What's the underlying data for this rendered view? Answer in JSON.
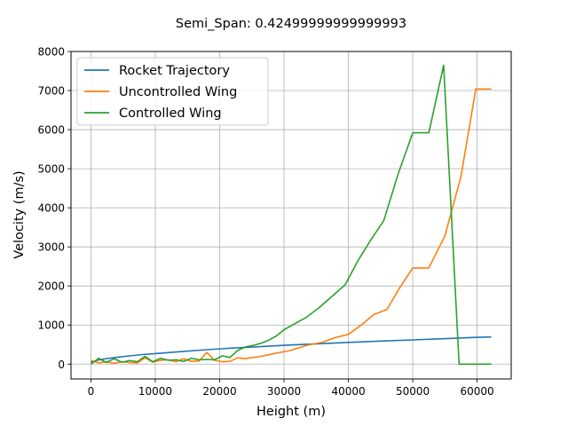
{
  "chart_data": {
    "type": "line",
    "title": "Semi_Span: 0.42499999999999993",
    "xlabel": "Height (m)",
    "ylabel": "Velocity (m/s)",
    "xlim": [
      -3100,
      65300
    ],
    "ylim": [
      -380,
      8000
    ],
    "xticks": [
      0,
      10000,
      20000,
      30000,
      40000,
      50000,
      60000
    ],
    "yticks": [
      0,
      1000,
      2000,
      3000,
      4000,
      5000,
      6000,
      7000,
      8000
    ],
    "grid": true,
    "legend_position": "upper-left",
    "series": [
      {
        "name": "Rocket Trajectory",
        "color": "#1f77b4",
        "x": [
          0,
          1000,
          2000,
          4000,
          6000,
          8000,
          10000,
          14000,
          18000,
          22000,
          26000,
          30000,
          35000,
          40000,
          45000,
          50000,
          55000,
          60000,
          62200
        ],
        "y": [
          40,
          100,
          130,
          175,
          210,
          245,
          270,
          320,
          370,
          410,
          445,
          480,
          520,
          555,
          590,
          620,
          650,
          685,
          695
        ]
      },
      {
        "name": "Uncontrolled Wing",
        "color": "#ff7f0e",
        "x": [
          0,
          1200,
          2400,
          3600,
          4800,
          6000,
          7200,
          8400,
          9600,
          10800,
          12000,
          13200,
          14400,
          15600,
          16800,
          18000,
          19200,
          20400,
          21600,
          22800,
          24000,
          25200,
          26400,
          27600,
          28800,
          31000,
          33500,
          36000,
          38000,
          40000,
          42000,
          44000,
          46000,
          48000,
          50000,
          52500,
          55000,
          57500,
          59800,
          62200
        ],
        "y": [
          90,
          30,
          60,
          20,
          60,
          40,
          30,
          160,
          50,
          100,
          110,
          60,
          140,
          70,
          80,
          300,
          100,
          60,
          70,
          160,
          140,
          170,
          200,
          240,
          280,
          350,
          480,
          560,
          680,
          760,
          1000,
          1270,
          1400,
          1960,
          2460,
          2460,
          3280,
          4800,
          7040,
          7040
        ]
      },
      {
        "name": "Controlled Wing",
        "color": "#2ca02c",
        "x": [
          0,
          1200,
          2400,
          3600,
          4800,
          6000,
          7200,
          8400,
          9600,
          10800,
          12000,
          13200,
          14400,
          15600,
          16800,
          18000,
          19200,
          20400,
          21600,
          22800,
          24000,
          25200,
          26400,
          27600,
          28800,
          30000,
          31500,
          33500,
          35500,
          37500,
          39500,
          41500,
          43500,
          45500,
          47800,
          50000,
          52500,
          54800,
          57200,
          59600,
          62200
        ],
        "y": [
          0,
          150,
          40,
          140,
          50,
          90,
          60,
          200,
          60,
          150,
          100,
          110,
          70,
          150,
          110,
          120,
          110,
          210,
          170,
          350,
          440,
          480,
          530,
          610,
          720,
          880,
          1020,
          1200,
          1450,
          1740,
          2030,
          2650,
          3180,
          3670,
          4900,
          5920,
          5920,
          7650,
          0,
          0,
          0
        ]
      }
    ]
  }
}
